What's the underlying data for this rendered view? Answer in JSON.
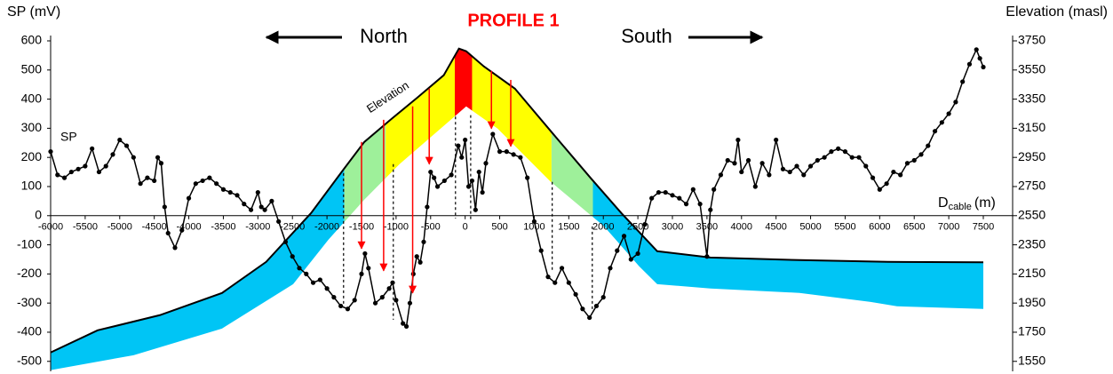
{
  "chart_data": {
    "type": "line",
    "title": "PROFILE 1",
    "ylabel": "SP (mV)",
    "y2label": "Elevation (masl)",
    "xlabel": "D",
    "xlabel_sub": "cable",
    "xlabel_unit": "(m)",
    "north": "North",
    "south": "South",
    "xlim": [
      -6000,
      7500
    ],
    "ylim": [
      -530,
      600
    ],
    "y2lim": [
      1490,
      3750
    ],
    "xticks": [
      -6000,
      -5500,
      -5000,
      -4500,
      -4000,
      -3500,
      -3000,
      -2500,
      -2000,
      -1500,
      -1000,
      -500,
      0,
      500,
      1000,
      1500,
      2000,
      2500,
      3000,
      3500,
      4000,
      4500,
      5000,
      5500,
      6000,
      6500,
      7000,
      7500
    ],
    "yticks": [
      -500,
      -400,
      -300,
      -200,
      -100,
      0,
      100,
      200,
      300,
      400,
      500,
      600
    ],
    "y2ticks": [
      1550,
      1750,
      1950,
      2150,
      2350,
      2550,
      2750,
      2950,
      3150,
      3350,
      3550,
      3750
    ],
    "series": [
      {
        "name": "SP",
        "color": "#000000",
        "x": [
          -6000,
          -5900,
          -5800,
          -5700,
          -5600,
          -5500,
          -5400,
          -5300,
          -5200,
          -5100,
          -5000,
          -4900,
          -4800,
          -4700,
          -4600,
          -4500,
          -4450,
          -4400,
          -4350,
          -4300,
          -4200,
          -4100,
          -4000,
          -3900,
          -3800,
          -3700,
          -3600,
          -3500,
          -3400,
          -3300,
          -3200,
          -3100,
          -3000,
          -2950,
          -2900,
          -2800,
          -2700,
          -2600,
          -2500,
          -2400,
          -2300,
          -2200,
          -2100,
          -2000,
          -1900,
          -1800,
          -1700,
          -1600,
          -1500,
          -1450,
          -1400,
          -1300,
          -1200,
          -1100,
          -1050,
          -1000,
          -900,
          -850,
          -800,
          -750,
          -700,
          -650,
          -600,
          -550,
          -500,
          -450,
          -400,
          -300,
          -200,
          -100,
          -50,
          0,
          50,
          100,
          150,
          200,
          250,
          300,
          400,
          500,
          600,
          700,
          800,
          900,
          1000,
          1100,
          1200,
          1300,
          1400,
          1500,
          1600,
          1700,
          1800,
          1900,
          2000,
          2100,
          2200,
          2300,
          2400,
          2500,
          2600,
          2700,
          2800,
          2900,
          3000,
          3100,
          3200,
          3300,
          3400,
          3500,
          3550,
          3600,
          3700,
          3800,
          3900,
          3950,
          4000,
          4100,
          4200,
          4300,
          4400,
          4500,
          4600,
          4700,
          4800,
          4900,
          5000,
          5100,
          5200,
          5300,
          5400,
          5500,
          5600,
          5700,
          5800,
          5900,
          6000,
          6100,
          6200,
          6300,
          6400,
          6500,
          6600,
          6700,
          6800,
          6900,
          7000,
          7100,
          7200,
          7300,
          7400,
          7450,
          7500
        ],
        "values": [
          220,
          140,
          130,
          150,
          160,
          170,
          230,
          150,
          170,
          210,
          260,
          240,
          200,
          110,
          130,
          120,
          200,
          180,
          30,
          -60,
          -110,
          -50,
          60,
          110,
          120,
          130,
          110,
          90,
          80,
          70,
          40,
          20,
          80,
          30,
          20,
          50,
          -20,
          -90,
          -140,
          -180,
          -200,
          -230,
          -220,
          -250,
          -280,
          -310,
          -320,
          -290,
          -200,
          -130,
          -180,
          -300,
          -280,
          -250,
          -230,
          -290,
          -370,
          -380,
          -300,
          -200,
          -140,
          -160,
          -90,
          30,
          150,
          130,
          100,
          120,
          140,
          240,
          200,
          260,
          100,
          120,
          20,
          150,
          80,
          180,
          280,
          220,
          220,
          210,
          200,
          130,
          -20,
          -120,
          -210,
          -230,
          -180,
          -230,
          -270,
          -320,
          -350,
          -310,
          -280,
          -180,
          -120,
          -70,
          -150,
          -130,
          -30,
          60,
          80,
          80,
          70,
          60,
          40,
          90,
          40,
          -140,
          20,
          90,
          140,
          190,
          180,
          260,
          150,
          190,
          100,
          180,
          140,
          260,
          160,
          150,
          170,
          140,
          170,
          190,
          200,
          220,
          230,
          220,
          200,
          200,
          170,
          130,
          90,
          110,
          150,
          140,
          180,
          190,
          210,
          240,
          290,
          320,
          350,
          390,
          460,
          520,
          570,
          540,
          510
        ]
      },
      {
        "name": "Elevation",
        "color": "#000000",
        "axis": "y2",
        "x": [
          -6000,
          -5320,
          -4420,
          -3520,
          -2880,
          -2230,
          -1780,
          -1460,
          -1080,
          -690,
          -310,
          -90,
          15,
          270,
          720,
          1240,
          1810,
          2260,
          2780,
          3550,
          4840,
          6120,
          7500
        ],
        "values": [
          1611,
          1763,
          1867,
          2019,
          2233,
          2568,
          2855,
          3056,
          3209,
          3361,
          3514,
          3697,
          3679,
          3575,
          3422,
          3130,
          2812,
          2568,
          2306,
          2263,
          2245,
          2233,
          2230
        ]
      },
      {
        "color": "#000000",
        "axis": "y2",
        "x": [
          -6000,
          -4800,
          -3520,
          -2490,
          -1980,
          -1460,
          -950,
          -430,
          15,
          470,
          1240,
          2010,
          2520,
          2780,
          3550,
          4840,
          5870,
          6250,
          7500
        ],
        "values": [
          1490,
          1592,
          1775,
          2080,
          2385,
          2660,
          2904,
          3117,
          3300,
          3148,
          2782,
          2477,
          2202,
          2080,
          2050,
          2020,
          1958,
          1928,
          1910
        ]
      }
    ],
    "zones": [
      {
        "from": -6000,
        "to": -1750,
        "color": "#00c5f5"
      },
      {
        "from": -1750,
        "to": -1150,
        "color": "#9ef09a"
      },
      {
        "from": -1150,
        "to": -150,
        "color": "#ffff00"
      },
      {
        "from": -150,
        "to": 100,
        "color": "#ff0000"
      },
      {
        "from": 100,
        "to": 1250,
        "color": "#ffff00"
      },
      {
        "from": 1250,
        "to": 1850,
        "color": "#9ef09a"
      },
      {
        "from": 1850,
        "to": 7500,
        "color": "#00c5f5"
      }
    ],
    "dashed": [
      {
        "x": -1760,
        "from": 146,
        "to": -310
      },
      {
        "x": -1040,
        "from": 177,
        "to": -357
      },
      {
        "x": -140,
        "from": 340,
        "to": -10
      },
      {
        "x": 80,
        "from": 345,
        "to": -20
      },
      {
        "x": 1260,
        "from": 116,
        "to": -190
      },
      {
        "x": 1840,
        "from": -37,
        "to": -326
      }
    ],
    "arrows": [
      {
        "x": -1500,
        "from": 253,
        "to": -113
      },
      {
        "x": -1180,
        "from": 329,
        "to": -189
      },
      {
        "x": -760,
        "from": 375,
        "to": -265
      },
      {
        "x": -520,
        "from": 436,
        "to": 177
      },
      {
        "x": 380,
        "from": 497,
        "to": 299
      },
      {
        "x": 660,
        "from": 466,
        "to": 238
      }
    ]
  }
}
